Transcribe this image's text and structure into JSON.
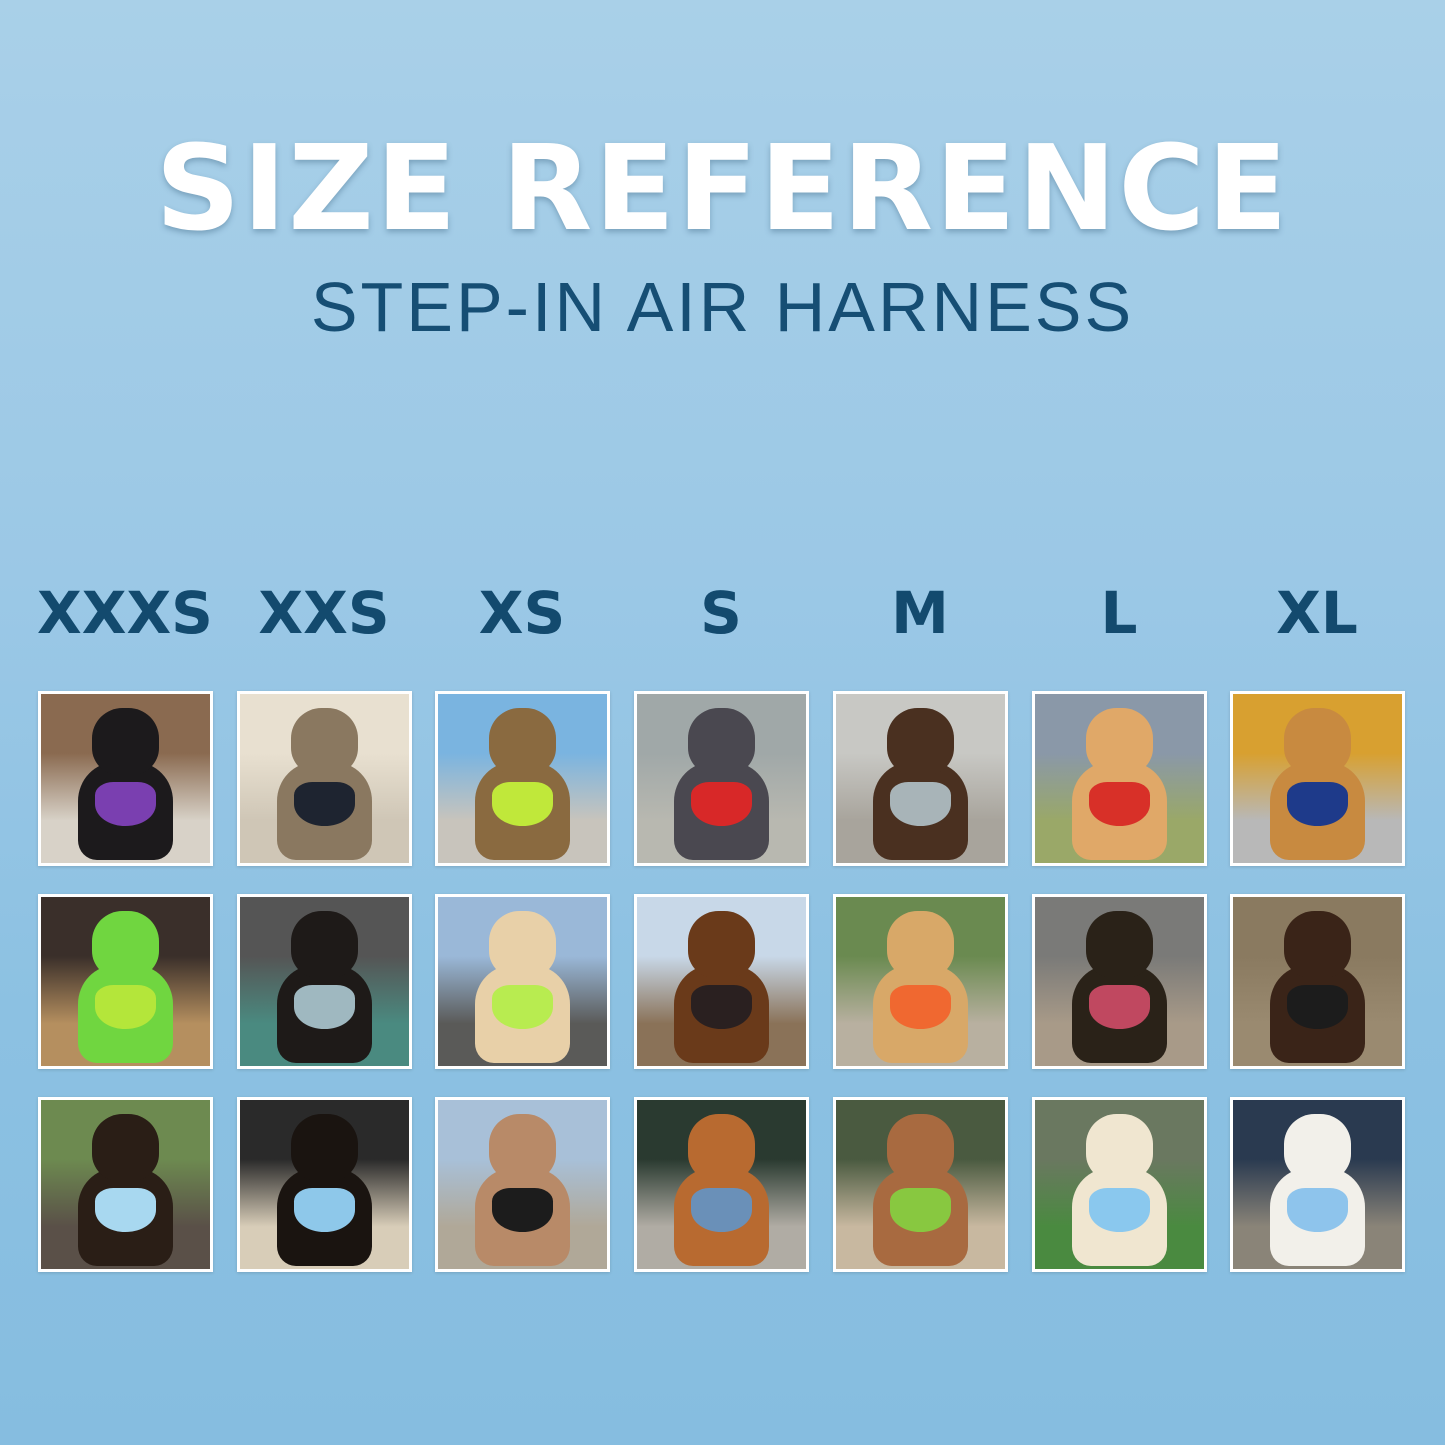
{
  "header": {
    "title": "SIZE REFERENCE",
    "subtitle": "STEP-IN AIR HARNESS"
  },
  "sizes": [
    "XXXS",
    "XXS",
    "XS",
    "S",
    "M",
    "L",
    "XL"
  ],
  "photos": [
    [
      {
        "scene": [
          "#8a6a50",
          "#d8d2c8"
        ],
        "animal": "#1c1a1c",
        "harness": "#7a3fb0"
      },
      {
        "scene": [
          "#3a2f2a",
          "#b58f5f"
        ],
        "animal": "#70d640",
        "harness": "#b4e63a"
      },
      {
        "scene": [
          "#6d8a50",
          "#5a5048"
        ],
        "animal": "#2a1e16",
        "harness": "#a8d8f0"
      }
    ],
    [
      {
        "scene": [
          "#e8e0d0",
          "#cfc6b6"
        ],
        "animal": "#8a7860",
        "harness": "#1e2430"
      },
      {
        "scene": [
          "#555555",
          "#4a8a80"
        ],
        "animal": "#1e1a18",
        "harness": "#9fb8c0"
      },
      {
        "scene": [
          "#2a2a2a",
          "#d8cdb8"
        ],
        "animal": "#1a1410",
        "harness": "#8ec8ea"
      }
    ],
    [
      {
        "scene": [
          "#7ab4e0",
          "#c8c4bc"
        ],
        "animal": "#8a6a40",
        "harness": "#c0e83a"
      },
      {
        "scene": [
          "#9ab8d8",
          "#5a5a58"
        ],
        "animal": "#e8d0a8",
        "harness": "#b8ec50"
      },
      {
        "scene": [
          "#a8c0d8",
          "#b0a898"
        ],
        "animal": "#b88a68",
        "harness": "#1c1c1c"
      }
    ],
    [
      {
        "scene": [
          "#a0a8a8",
          "#b8b8b0"
        ],
        "animal": "#4a4850",
        "harness": "#d82828"
      },
      {
        "scene": [
          "#c8d8e8",
          "#8a7258"
        ],
        "animal": "#6a3a1a",
        "harness": "#2a2020"
      },
      {
        "scene": [
          "#2a3a30",
          "#b0aca4"
        ],
        "animal": "#b86a30",
        "harness": "#6a90b8"
      }
    ],
    [
      {
        "scene": [
          "#c8c8c4",
          "#a8a49c"
        ],
        "animal": "#4a3020",
        "harness": "#a8b4b8"
      },
      {
        "scene": [
          "#6a8a50",
          "#b8b0a0"
        ],
        "animal": "#d8a868",
        "harness": "#f06830"
      },
      {
        "scene": [
          "#4a5a40",
          "#c8b8a0"
        ],
        "animal": "#a86a40",
        "harness": "#88c840"
      }
    ],
    [
      {
        "scene": [
          "#8a98a8",
          "#9aa868"
        ],
        "animal": "#e0a868",
        "harness": "#d83028"
      },
      {
        "scene": [
          "#7a7a78",
          "#a89a88"
        ],
        "animal": "#2a2218",
        "harness": "#c04860"
      },
      {
        "scene": [
          "#6a7860",
          "#4a8a40"
        ],
        "animal": "#f0e6d0",
        "harness": "#8ac8ee"
      }
    ],
    [
      {
        "scene": [
          "#d8a030",
          "#b8b8b8"
        ],
        "animal": "#c88a40",
        "harness": "#1e3a8a"
      },
      {
        "scene": [
          "#8a7a60",
          "#9a8a70"
        ],
        "animal": "#3a2418",
        "harness": "#1c1c1c"
      },
      {
        "scene": [
          "#2a3a50",
          "#8a8478"
        ],
        "animal": "#f2f0ea",
        "harness": "#8ec4ec"
      }
    ]
  ]
}
